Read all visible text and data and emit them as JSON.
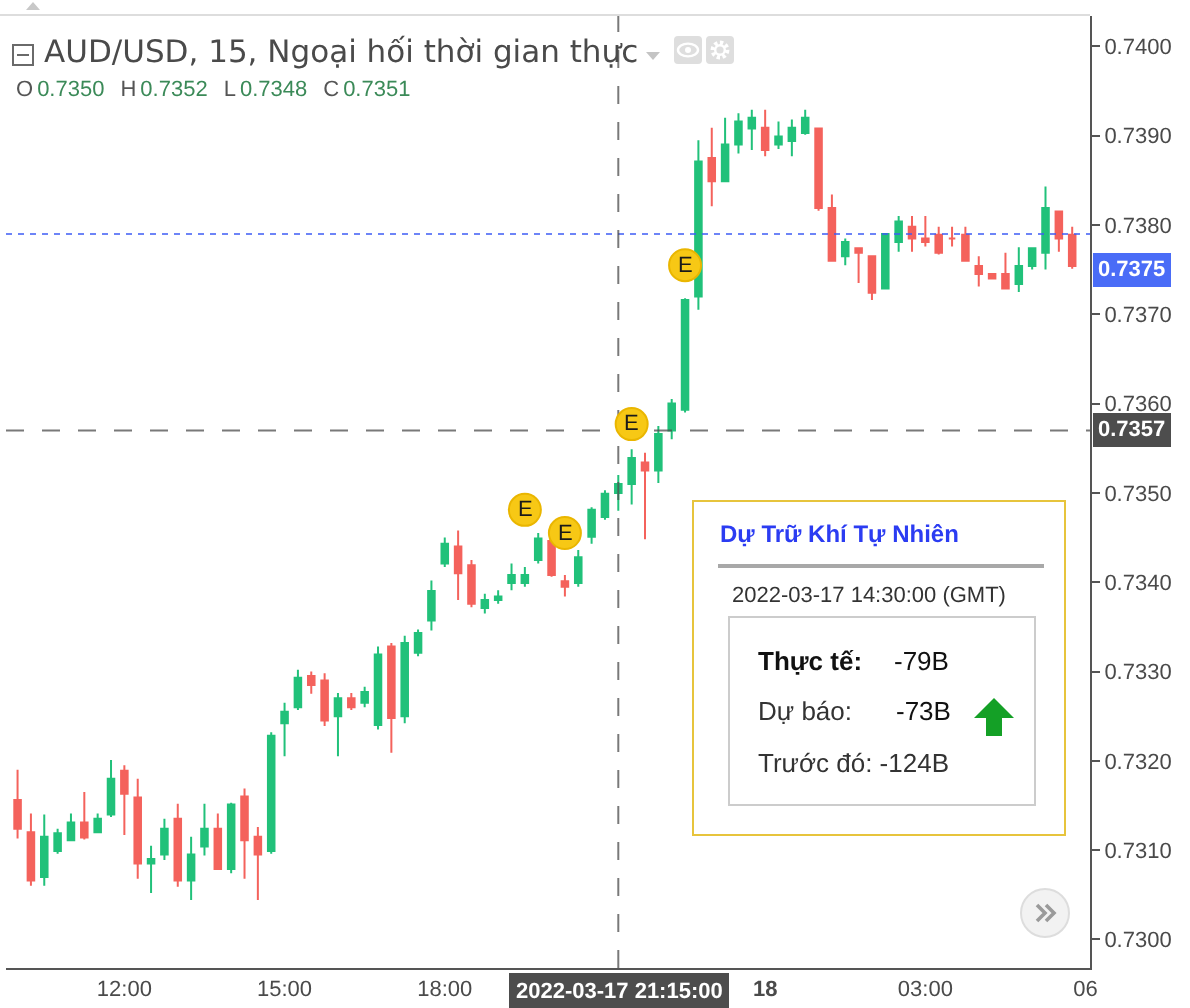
{
  "chart_data": {
    "type": "candlestick",
    "title": "AUD/USD, 15, Ngoại hối thời gian thực",
    "subtitle": "O 0.7350 H 0.7352 L 0.7348 C 0.7351",
    "x": [
      "2022-03-17T10:00",
      "2022-03-17T10:15",
      "2022-03-17T10:30",
      "2022-03-17T10:45",
      "2022-03-17T11:00",
      "2022-03-17T11:15",
      "2022-03-17T11:30",
      "2022-03-17T11:45",
      "2022-03-17T12:00",
      "2022-03-17T12:15",
      "2022-03-17T12:30",
      "2022-03-17T12:45",
      "2022-03-17T13:00",
      "2022-03-17T13:15",
      "2022-03-17T13:30",
      "2022-03-17T13:45",
      "2022-03-17T14:00",
      "2022-03-17T14:15",
      "2022-03-17T14:30",
      "2022-03-17T14:45",
      "2022-03-17T15:00",
      "2022-03-17T15:15",
      "2022-03-17T15:30",
      "2022-03-17T15:45",
      "2022-03-17T16:00",
      "2022-03-17T16:15",
      "2022-03-17T16:30",
      "2022-03-17T16:45",
      "2022-03-17T17:00",
      "2022-03-17T17:15",
      "2022-03-17T17:30",
      "2022-03-17T17:45",
      "2022-03-17T18:00",
      "2022-03-17T18:15",
      "2022-03-17T18:30",
      "2022-03-17T18:45",
      "2022-03-17T19:00",
      "2022-03-17T19:15",
      "2022-03-17T19:30",
      "2022-03-17T19:45",
      "2022-03-17T20:00",
      "2022-03-17T20:15",
      "2022-03-17T20:30",
      "2022-03-17T20:45",
      "2022-03-17T21:00",
      "2022-03-17T21:15",
      "2022-03-17T21:30",
      "2022-03-17T21:45",
      "2022-03-17T22:00",
      "2022-03-17T22:15",
      "2022-03-17T22:30",
      "2022-03-17T22:45",
      "2022-03-17T23:00",
      "2022-03-17T23:15",
      "2022-03-17T23:30",
      "2022-03-17T23:45",
      "2022-03-18T00:00",
      "2022-03-18T00:15",
      "2022-03-18T00:30",
      "2022-03-18T00:45",
      "2022-03-18T01:00",
      "2022-03-18T01:15",
      "2022-03-18T01:30",
      "2022-03-18T01:45",
      "2022-03-18T02:00",
      "2022-03-18T02:15",
      "2022-03-18T02:30",
      "2022-03-18T02:45",
      "2022-03-18T03:00",
      "2022-03-18T03:15",
      "2022-03-18T03:30",
      "2022-03-18T03:45",
      "2022-03-18T04:00",
      "2022-03-18T04:15",
      "2022-03-18T04:30",
      "2022-03-18T04:45",
      "2022-03-18T05:00",
      "2022-03-18T05:15",
      "2022-03-18T05:30",
      "2022-03-18T05:45"
    ],
    "ohlc": [
      [
        0.73156,
        0.7319,
        0.73113,
        0.73124
      ],
      [
        0.7312,
        0.73141,
        0.7306,
        0.73066
      ],
      [
        0.7307,
        0.7314,
        0.7306,
        0.73115
      ],
      [
        0.73099,
        0.73124,
        0.73096,
        0.73119
      ],
      [
        0.73111,
        0.73141,
        0.7311,
        0.73131
      ],
      [
        0.73131,
        0.73165,
        0.73112,
        0.73114
      ],
      [
        0.7312,
        0.73141,
        0.73119,
        0.73135
      ],
      [
        0.7314,
        0.73201,
        0.73137,
        0.7318
      ],
      [
        0.73189,
        0.73195,
        0.73117,
        0.73163
      ],
      [
        0.73159,
        0.7318,
        0.73068,
        0.73085
      ],
      [
        0.73085,
        0.73105,
        0.73052,
        0.7309
      ],
      [
        0.73095,
        0.73135,
        0.73089,
        0.73124
      ],
      [
        0.73135,
        0.73152,
        0.73059,
        0.73066
      ],
      [
        0.73066,
        0.73115,
        0.73044,
        0.73095
      ],
      [
        0.73104,
        0.73152,
        0.73094,
        0.73124
      ],
      [
        0.73124,
        0.73141,
        0.73078,
        0.73079
      ],
      [
        0.73079,
        0.73153,
        0.73074,
        0.73151
      ],
      [
        0.7316,
        0.73169,
        0.73068,
        0.73111
      ],
      [
        0.73115,
        0.73126,
        0.73044,
        0.73095
      ],
      [
        0.73099,
        0.73232,
        0.73096,
        0.73228
      ],
      [
        0.73242,
        0.73265,
        0.73205,
        0.73255
      ],
      [
        0.7326,
        0.73302,
        0.73257,
        0.73293
      ],
      [
        0.73295,
        0.733,
        0.73275,
        0.73285
      ],
      [
        0.7329,
        0.73298,
        0.73239,
        0.73245
      ],
      [
        0.7325,
        0.73276,
        0.73205,
        0.7327
      ],
      [
        0.7327,
        0.73276,
        0.73257,
        0.7326
      ],
      [
        0.73265,
        0.73283,
        0.7326,
        0.73277
      ],
      [
        0.7324,
        0.73328,
        0.73235,
        0.73319
      ],
      [
        0.73328,
        0.73332,
        0.73209,
        0.73248
      ],
      [
        0.7325,
        0.7334,
        0.73242,
        0.73332
      ],
      [
        0.73321,
        0.73347,
        0.73317,
        0.73343
      ],
      [
        0.73357,
        0.73402,
        0.73346,
        0.7339
      ],
      [
        0.73421,
        0.7345,
        0.73417,
        0.73443
      ],
      [
        0.7344,
        0.73458,
        0.7338,
        0.7341
      ],
      [
        0.73419,
        0.73425,
        0.73372,
        0.73376
      ],
      [
        0.73371,
        0.73387,
        0.73365,
        0.7338
      ],
      [
        0.7338,
        0.73391,
        0.73376,
        0.73384
      ],
      [
        0.73399,
        0.73421,
        0.73391,
        0.73408
      ],
      [
        0.73399,
        0.73417,
        0.73395,
        0.73408
      ],
      [
        0.73425,
        0.73455,
        0.73421,
        0.73449
      ],
      [
        0.73446,
        0.73451,
        0.73406,
        0.73408
      ],
      [
        0.73401,
        0.73408,
        0.73384,
        0.73395
      ],
      [
        0.73399,
        0.73436,
        0.73395,
        0.73428
      ],
      [
        0.73451,
        0.73484,
        0.73443,
        0.73481
      ],
      [
        0.73473,
        0.73503,
        0.7347,
        0.73499
      ],
      [
        0.735,
        0.7352,
        0.7348,
        0.7351
      ],
      [
        0.7351,
        0.73549,
        0.73487,
        0.73539
      ],
      [
        0.73534,
        0.73545,
        0.73448,
        0.73525
      ],
      [
        0.73525,
        0.73575,
        0.73511,
        0.73566
      ],
      [
        0.7357,
        0.73605,
        0.7356,
        0.736
      ],
      [
        0.73593,
        0.73718,
        0.7359,
        0.73716
      ],
      [
        0.7372,
        0.73895,
        0.73705,
        0.73871
      ],
      [
        0.73875,
        0.73909,
        0.73821,
        0.73849
      ],
      [
        0.73849,
        0.7392,
        0.73848,
        0.7389
      ],
      [
        0.7389,
        0.73925,
        0.7388,
        0.73916
      ],
      [
        0.73908,
        0.73929,
        0.73884,
        0.7392
      ],
      [
        0.73909,
        0.73929,
        0.73877,
        0.73884
      ],
      [
        0.7389,
        0.73916,
        0.73885,
        0.73899
      ],
      [
        0.73894,
        0.73918,
        0.73877,
        0.73909
      ],
      [
        0.73903,
        0.73929,
        0.73901,
        0.7392
      ],
      [
        0.73908,
        0.73909,
        0.73816,
        0.73819
      ],
      [
        0.73819,
        0.73834,
        0.7376,
        0.7376
      ],
      [
        0.73765,
        0.73785,
        0.73755,
        0.73781
      ],
      [
        0.73774,
        0.73774,
        0.73735,
        0.73769
      ],
      [
        0.73765,
        0.73766,
        0.73716,
        0.73724
      ],
      [
        0.73729,
        0.73791,
        0.73728,
        0.7379
      ],
      [
        0.73781,
        0.7381,
        0.7377,
        0.73804
      ],
      [
        0.73798,
        0.7381,
        0.7377,
        0.73785
      ],
      [
        0.73785,
        0.7381,
        0.73776,
        0.73781
      ],
      [
        0.73789,
        0.73798,
        0.73767,
        0.73769
      ],
      [
        0.73785,
        0.73798,
        0.73776,
        0.73785
      ],
      [
        0.73789,
        0.73798,
        0.7376,
        0.7376
      ],
      [
        0.73754,
        0.73765,
        0.73731,
        0.73745
      ],
      [
        0.73745,
        0.73745,
        0.7374,
        0.7374
      ],
      [
        0.73745,
        0.73769,
        0.73729,
        0.73729
      ],
      [
        0.73734,
        0.73775,
        0.73725,
        0.73754
      ],
      [
        0.73754,
        0.73774,
        0.7375,
        0.73774
      ],
      [
        0.73769,
        0.73843,
        0.7375,
        0.73819
      ],
      [
        0.73815,
        0.73815,
        0.7377,
        0.73785
      ],
      [
        0.73789,
        0.73798,
        0.73751,
        0.73754
      ]
    ],
    "colors": [
      "#f4625c",
      "#f4625c",
      "#21c17a",
      "#21c17a",
      "#21c17a",
      "#f4625c",
      "#21c17a",
      "#21c17a",
      "#f4625c",
      "#f4625c",
      "#21c17a",
      "#21c17a",
      "#f4625c",
      "#21c17a",
      "#21c17a",
      "#f4625c",
      "#21c17a",
      "#f4625c",
      "#f4625c",
      "#21c17a",
      "#21c17a",
      "#21c17a",
      "#f4625c",
      "#f4625c",
      "#21c17a",
      "#f4625c",
      "#21c17a",
      "#21c17a",
      "#f4625c",
      "#21c17a",
      "#21c17a",
      "#21c17a",
      "#21c17a",
      "#f4625c",
      "#f4625c",
      "#21c17a",
      "#21c17a",
      "#21c17a",
      "#21c17a",
      "#21c17a",
      "#f4625c",
      "#f4625c",
      "#21c17a",
      "#21c17a",
      "#21c17a",
      "#21c17a",
      "#21c17a",
      "#f4625c",
      "#21c17a",
      "#21c17a",
      "#21c17a",
      "#21c17a",
      "#f4625c",
      "#21c17a",
      "#21c17a",
      "#21c17a",
      "#f4625c",
      "#21c17a",
      "#21c17a",
      "#21c17a",
      "#f4625c",
      "#f4625c",
      "#21c17a",
      "#f4625c",
      "#f4625c",
      "#21c17a",
      "#21c17a",
      "#f4625c",
      "#f4625c",
      "#f4625c",
      "#f4625c",
      "#f4625c",
      "#f4625c",
      "#f4625c",
      "#f4625c",
      "#21c17a",
      "#21c17a",
      "#21c17a",
      "#f4625c",
      "#f4625c"
    ],
    "xlim": [
      "2022-03-17T09:47",
      "2022-03-18T06:05"
    ],
    "xticks": [
      {
        "value": "2022-03-17T12:00",
        "label": "12:00"
      },
      {
        "value": "2022-03-17T15:00",
        "label": "15:00"
      },
      {
        "value": "2022-03-17T18:00",
        "label": "18:00"
      },
      {
        "value": "2022-03-18T00:00",
        "label": "18"
      },
      {
        "value": "2022-03-18T03:00",
        "label": "03:00"
      },
      {
        "value": "2022-03-18T06:00",
        "label": "06"
      }
    ],
    "ylim": [
      0.72968,
      0.74034
    ],
    "yticks": [
      {
        "value": 0.73,
        "label": "0.7300"
      },
      {
        "value": 0.731,
        "label": "0.7310"
      },
      {
        "value": 0.732,
        "label": "0.7320"
      },
      {
        "value": 0.733,
        "label": "0.7330"
      },
      {
        "value": 0.734,
        "label": "0.7340"
      },
      {
        "value": 0.735,
        "label": "0.7350"
      },
      {
        "value": 0.736,
        "label": "0.7360"
      },
      {
        "value": 0.737,
        "label": "0.7370"
      },
      {
        "value": 0.738,
        "label": "0.7380"
      },
      {
        "value": 0.739,
        "label": "0.7390"
      },
      {
        "value": 0.74,
        "label": "0.7400"
      }
    ],
    "grid": false,
    "ref_lines": [
      {
        "axis": "y",
        "value": 0.7379,
        "color": "#3d5bf5",
        "line_style": "dotted"
      },
      {
        "axis": "y",
        "value": 0.7357,
        "label": "0.7357",
        "color": "#4d4d4d",
        "line_style": "dashed"
      },
      {
        "axis": "x",
        "value": "2022-03-17T21:15",
        "label": "2022-03-17 21:15:00",
        "color": "#4d4d4d",
        "line_style": "dashed"
      }
    ],
    "annotations": [
      {
        "text": "E",
        "x": "2022-03-17T19:30",
        "y": 0.73481
      },
      {
        "text": "E",
        "x": "2022-03-17T20:15",
        "y": 0.73455
      },
      {
        "text": "E",
        "x": "2022-03-17T21:30",
        "y": 0.73577
      },
      {
        "text": "E",
        "x": "2022-03-17T22:30",
        "y": 0.73755
      },
      {
        "text": "0.7375",
        "y": 0.7375
      },
      "Dự Trữ Khí Tự Nhiên",
      "2022-03-17 14:30:00 (GMT)",
      "Thực tế:",
      "-79B",
      "Dự báo:",
      "-73B",
      "Trước đó: -124B"
    ]
  }
}
